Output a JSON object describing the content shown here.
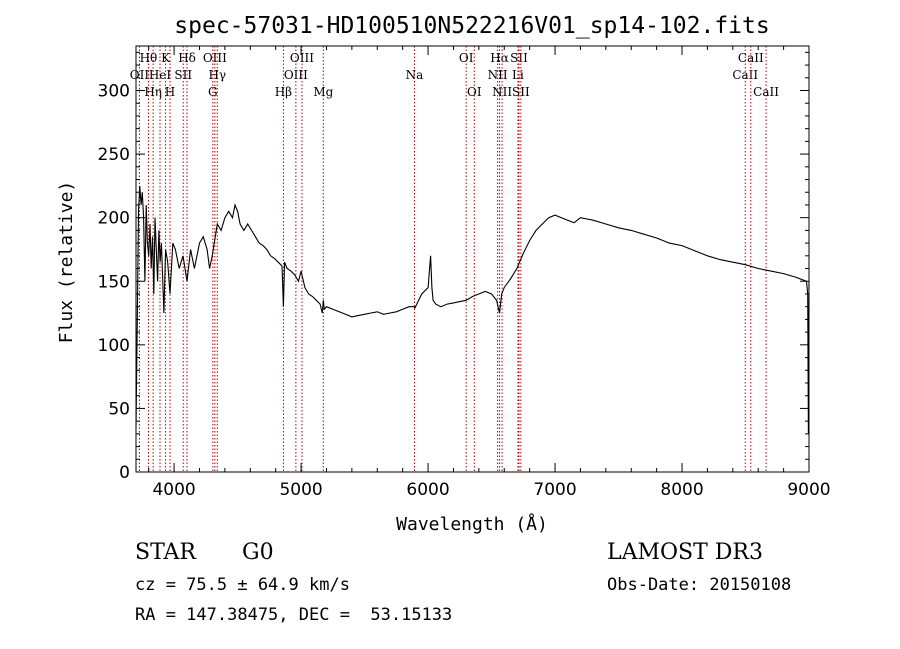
{
  "chart_data": {
    "type": "line",
    "title": "spec-57031-HD100510N522216V01_sp14-102.fits",
    "xlabel": "Wavelength (Å)",
    "ylabel": "Flux (relative)",
    "xlim": [
      3700,
      9000
    ],
    "ylim": [
      0,
      335
    ],
    "x_ticks": [
      4000,
      5000,
      6000,
      7000,
      8000,
      9000
    ],
    "y_ticks": [
      0,
      50,
      100,
      150,
      200,
      250,
      300
    ],
    "grid": false,
    "series": [
      {
        "x": [
          3700,
          3710,
          3720,
          3730,
          3740,
          3750,
          3760,
          3770,
          3780,
          3790,
          3800,
          3810,
          3820,
          3830,
          3840,
          3850,
          3860,
          3870,
          3880,
          3890,
          3900,
          3920,
          3933,
          3950,
          3968,
          3990,
          4010,
          4040,
          4070,
          4102,
          4130,
          4160,
          4200,
          4230,
          4260,
          4280,
          4300,
          4340,
          4370,
          4400,
          4430,
          4460,
          4480,
          4500,
          4520,
          4550,
          4580,
          4610,
          4640,
          4670,
          4700,
          4730,
          4760,
          4790,
          4820,
          4850,
          4861,
          4870,
          4890,
          4920,
          4950,
          4980,
          5000,
          5030,
          5060,
          5090,
          5120,
          5150,
          5167,
          5175,
          5183,
          5200,
          5250,
          5300,
          5350,
          5400,
          5450,
          5500,
          5550,
          5600,
          5650,
          5700,
          5750,
          5800,
          5850,
          5890,
          5896,
          5950,
          6000,
          6020,
          6030,
          6040,
          6060,
          6100,
          6150,
          6200,
          6250,
          6300,
          6350,
          6400,
          6450,
          6500,
          6540,
          6563,
          6580,
          6600,
          6650,
          6700,
          6750,
          6800,
          6850,
          6900,
          6950,
          7000,
          7050,
          7100,
          7150,
          7200,
          7300,
          7400,
          7500,
          7600,
          7700,
          7800,
          7900,
          8000,
          8100,
          8200,
          8300,
          8400,
          8500,
          8600,
          8700,
          8800,
          8900,
          8980,
          8990,
          8995,
          9000
        ],
        "y": [
          35,
          120,
          205,
          225,
          210,
          220,
          200,
          150,
          210,
          180,
          170,
          195,
          160,
          185,
          140,
          200,
          175,
          150,
          190,
          165,
          180,
          125,
          175,
          165,
          140,
          180,
          175,
          160,
          170,
          150,
          175,
          160,
          180,
          185,
          175,
          160,
          170,
          195,
          190,
          200,
          205,
          200,
          210,
          205,
          195,
          190,
          195,
          190,
          185,
          180,
          178,
          175,
          170,
          168,
          165,
          162,
          130,
          165,
          160,
          158,
          155,
          150,
          158,
          145,
          140,
          138,
          135,
          132,
          125,
          135,
          128,
          130,
          128,
          126,
          124,
          122,
          123,
          124,
          125,
          126,
          124,
          125,
          126,
          128,
          130,
          130,
          129,
          140,
          145,
          170,
          145,
          135,
          132,
          130,
          132,
          133,
          134,
          135,
          138,
          140,
          142,
          140,
          135,
          125,
          140,
          145,
          152,
          160,
          172,
          182,
          190,
          195,
          200,
          202,
          200,
          198,
          196,
          200,
          198,
          195,
          192,
          190,
          187,
          184,
          180,
          178,
          174,
          170,
          167,
          165,
          163,
          160,
          158,
          156,
          153,
          150,
          140,
          30,
          150
        ]
      }
    ],
    "line_markers": [
      {
        "name": "OII",
        "x": 3727,
        "row": 2
      },
      {
        "name": "Hθ",
        "x": 3798,
        "row": 1
      },
      {
        "name": "Hη",
        "x": 3835,
        "row": 3
      },
      {
        "name": "HeI",
        "x": 3889,
        "row": 2
      },
      {
        "name": "K",
        "x": 3933,
        "row": 1
      },
      {
        "name": "H",
        "x": 3968,
        "row": 3
      },
      {
        "name": "SII",
        "x": 4072,
        "row": 2
      },
      {
        "name": "Hδ",
        "x": 4102,
        "row": 1
      },
      {
        "name": "OIII",
        "x": 4321,
        "row": 1
      },
      {
        "name": "Hγ",
        "x": 4340,
        "row": 2
      },
      {
        "name": "G",
        "x": 4305,
        "row": 3
      },
      {
        "name": "Hβ",
        "x": 4861,
        "row": 3
      },
      {
        "name": "OIII",
        "x": 4959,
        "row": 2
      },
      {
        "name": "OIII",
        "x": 5007,
        "row": 1
      },
      {
        "name": "Mg",
        "x": 5175,
        "row": 3
      },
      {
        "name": "Na",
        "x": 5893,
        "row": 2
      },
      {
        "name": "OI",
        "x": 6300,
        "row": 1
      },
      {
        "name": "OI",
        "x": 6364,
        "row": 3
      },
      {
        "name": "NII",
        "x": 6548,
        "row": 2
      },
      {
        "name": "Hα",
        "x": 6563,
        "row": 1
      },
      {
        "name": "NII",
        "x": 6583,
        "row": 3
      },
      {
        "name": "Li",
        "x": 6708,
        "row": 2
      },
      {
        "name": "SII",
        "x": 6716,
        "row": 1
      },
      {
        "name": "SII",
        "x": 6731,
        "row": 3
      },
      {
        "name": "CaII",
        "x": 8498,
        "row": 2
      },
      {
        "name": "CaII",
        "x": 8542,
        "row": 1
      },
      {
        "name": "CaII",
        "x": 8662,
        "row": 3
      }
    ]
  },
  "info": {
    "class_label": "STAR",
    "subclass_label": "G0",
    "survey": "LAMOST DR3",
    "redshift": "cz = 75.5 ± 64.9 km/s",
    "obs_date": "Obs-Date: 20150108",
    "coords": "RA = 147.38475, DEC =  53.15133"
  },
  "colors": {
    "marker_line": "#c00000",
    "spectrum": "#000000"
  }
}
